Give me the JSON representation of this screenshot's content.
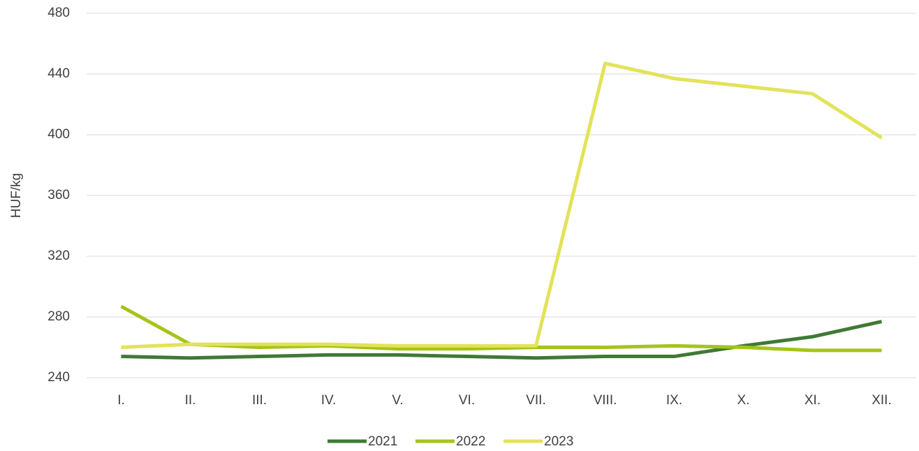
{
  "chart_data": {
    "type": "line",
    "y_label": "HUF/kg",
    "categories": [
      "I.",
      "II.",
      "III.",
      "IV.",
      "V.",
      "VI.",
      "VII.",
      "VIII.",
      "IX.",
      "X.",
      "XI.",
      "XII."
    ],
    "series": [
      {
        "name": "2021",
        "color": "#3f7a35",
        "values": [
          254,
          253,
          254,
          255,
          255,
          254,
          253,
          254,
          254,
          261,
          267,
          277
        ]
      },
      {
        "name": "2022",
        "color": "#a5c41a",
        "values": [
          287,
          262,
          260,
          261,
          259,
          259,
          260,
          260,
          261,
          260,
          258,
          258
        ]
      },
      {
        "name": "2023",
        "color": "#e2e35a",
        "values": [
          260,
          262,
          262,
          262,
          261,
          261,
          261,
          447,
          437,
          432,
          427,
          398
        ]
      }
    ],
    "ylim": [
      240,
      480
    ],
    "yticks": [
      240,
      280,
      320,
      360,
      400,
      440,
      480
    ],
    "grid": true,
    "legend": "bottom"
  }
}
